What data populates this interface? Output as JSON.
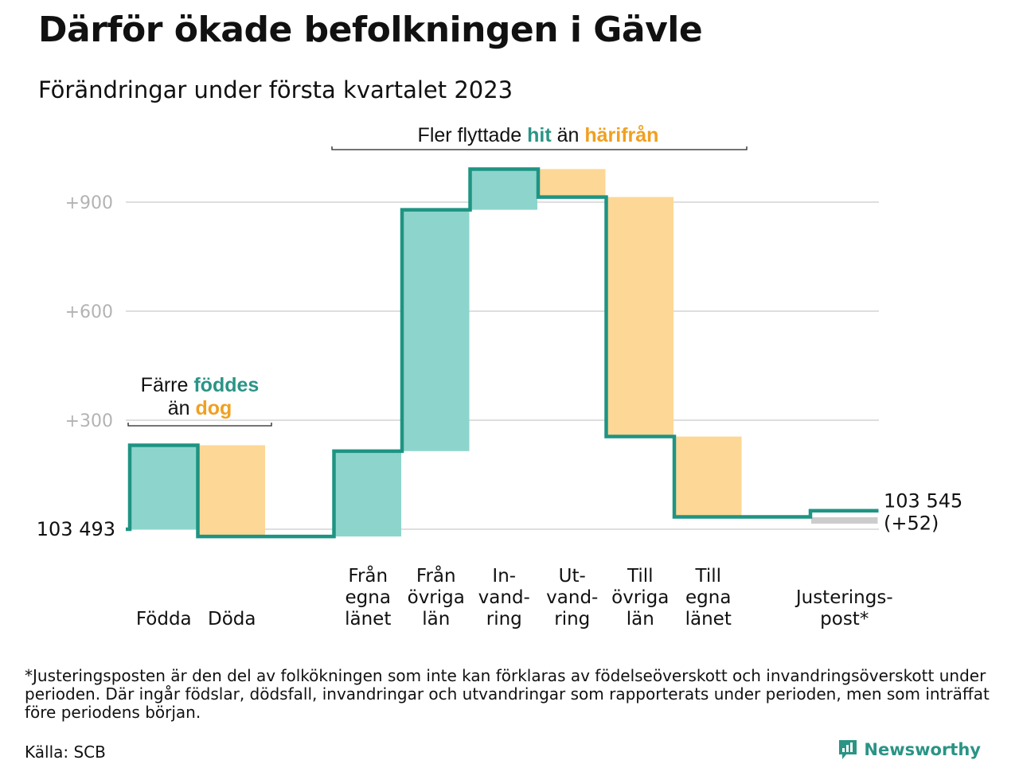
{
  "header": {
    "title": "Därför ökade befolkningen i Gävle",
    "subtitle": "Förändringar under första kvartalet 2023"
  },
  "colors": {
    "line": "#1e9483",
    "positive_fill": "#8dd5cc",
    "negative_fill": "#fcd795",
    "adjustment_fill": "#cccccc",
    "gridline": "#dedede",
    "tick_text": "#b3b3b3",
    "highlight_teal": "#2a9486",
    "highlight_orange": "#f0a020"
  },
  "chart_data": {
    "type": "waterfall",
    "start": {
      "label": "103 493",
      "value": 103493
    },
    "end": {
      "label_line1": "103 545",
      "label_line2": "(+52)",
      "value": 103545
    },
    "baseline_offset_value": 103493,
    "y_axis": {
      "range": [
        -50,
        1050
      ],
      "ticks": [
        {
          "value": 300,
          "label": "+300"
        },
        {
          "value": 600,
          "label": "+600"
        },
        {
          "value": 900,
          "label": "+900"
        }
      ],
      "gridlines": true
    },
    "steps": [
      {
        "lines": [
          "Födda"
        ],
        "change": 231,
        "kind": "in"
      },
      {
        "lines": [
          "Döda"
        ],
        "change": -251,
        "kind": "out"
      },
      {
        "lines": [],
        "change": 0,
        "kind": "gap"
      },
      {
        "lines": [
          "Från",
          "egna",
          "länet"
        ],
        "change": 235,
        "kind": "in"
      },
      {
        "lines": [
          "Från",
          "övriga",
          "län"
        ],
        "change": 664,
        "kind": "in"
      },
      {
        "lines": [
          "In-",
          "vand-",
          "ring"
        ],
        "change": 112,
        "kind": "in"
      },
      {
        "lines": [
          "Ut-",
          "vand-",
          "ring"
        ],
        "change": -77,
        "kind": "out"
      },
      {
        "lines": [
          "Till",
          "övriga",
          "län"
        ],
        "change": -659,
        "kind": "out"
      },
      {
        "lines": [
          "Till",
          "egna",
          "länet"
        ],
        "change": -221,
        "kind": "out"
      },
      {
        "lines": [],
        "change": 0,
        "kind": "gap"
      },
      {
        "lines": [
          "Justerings-",
          "post*"
        ],
        "change": 17,
        "kind": "adjustment"
      }
    ],
    "annotations": [
      {
        "parts": [
          {
            "text": "Färre ",
            "style": "plain"
          },
          {
            "text": "föddes",
            "style": "teal"
          }
        ],
        "parts_line2": [
          {
            "text": "än ",
            "style": "plain"
          },
          {
            "text": "dog",
            "style": "orange"
          }
        ]
      },
      {
        "parts": [
          {
            "text": "Fler flyttade ",
            "style": "plain"
          },
          {
            "text": "hit",
            "style": "teal"
          },
          {
            "text": " än ",
            "style": "plain"
          },
          {
            "text": "härifrån",
            "style": "orange"
          }
        ]
      }
    ]
  },
  "footer": {
    "footnote": "*Justeringsposten är den del av folkökningen som inte kan förklaras av födelseöverskott och invandringsöverskott under perioden. Där ingår födslar, dödsfall, invandringar och utvandringar som rapporterats under perioden, men som inträffat före periodens början.",
    "source": "Källa: SCB",
    "brand": "Newsworthy",
    "brand_icon": "newsworthy-logo-icon"
  }
}
